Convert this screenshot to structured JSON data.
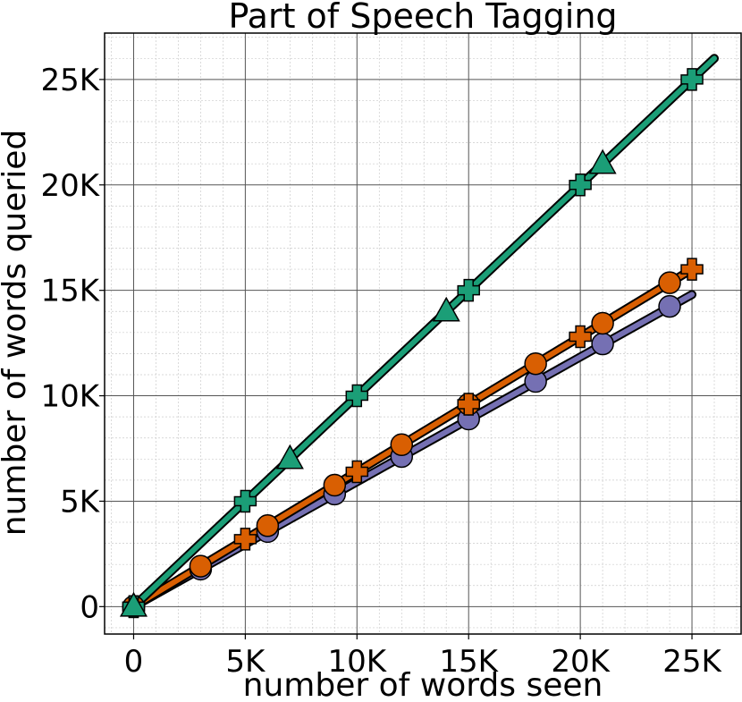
{
  "chart_data": {
    "type": "line",
    "title": "Part of Speech Tagging",
    "xlabel": "number of words seen",
    "ylabel": "number of words queried",
    "xlim": [
      -1300,
      27200
    ],
    "ylim": [
      -1300,
      27200
    ],
    "xticks": [
      0,
      5000,
      10000,
      15000,
      20000,
      25000
    ],
    "xtick_labels": [
      "0",
      "5K",
      "10K",
      "15K",
      "20K",
      "25K"
    ],
    "yticks": [
      0,
      5000,
      10000,
      15000,
      20000,
      25000
    ],
    "ytick_labels": [
      "0",
      "5K",
      "10K",
      "15K",
      "20K",
      "25K"
    ],
    "grid": true,
    "minor_grid": true,
    "legend": false,
    "series": [
      {
        "color": "#1b9e77",
        "line": {
          "x": [
            0,
            26000
          ],
          "y": [
            0,
            26000
          ]
        },
        "markers": [
          {
            "symbol": "plus",
            "points": [
              [
                0,
                0
              ],
              [
                5000,
                5000
              ],
              [
                10000,
                10000
              ],
              [
                15000,
                15000
              ],
              [
                20000,
                20000
              ],
              [
                25000,
                25000
              ]
            ]
          },
          {
            "symbol": "triangle",
            "points": [
              [
                0,
                0
              ],
              [
                7000,
                7000
              ],
              [
                14000,
                14000
              ],
              [
                21000,
                21000
              ]
            ]
          }
        ]
      },
      {
        "color": "#7570b3",
        "line": {
          "x": [
            0,
            25000
          ],
          "y": [
            0,
            14800
          ]
        },
        "markers": [
          {
            "symbol": "circle",
            "points": [
              [
                0,
                0
              ],
              [
                3000,
                1780
              ],
              [
                6000,
                3560
              ],
              [
                9000,
                5340
              ],
              [
                12000,
                7120
              ],
              [
                15000,
                8900
              ],
              [
                18000,
                10680
              ],
              [
                21000,
                12460
              ],
              [
                24000,
                14240
              ]
            ]
          }
        ]
      },
      {
        "color": "#d95f02",
        "line": {
          "x": [
            0,
            25000
          ],
          "y": [
            0,
            16000
          ]
        },
        "markers": [
          {
            "symbol": "circle",
            "points": [
              [
                0,
                0
              ],
              [
                3000,
                1920
              ],
              [
                6000,
                3840
              ],
              [
                9000,
                5760
              ],
              [
                12000,
                7680
              ],
              [
                15000,
                9600
              ],
              [
                18000,
                11520
              ],
              [
                21000,
                13440
              ],
              [
                24000,
                15360
              ]
            ]
          },
          {
            "symbol": "plus",
            "points": [
              [
                0,
                0
              ],
              [
                5000,
                3200
              ],
              [
                10000,
                6400
              ],
              [
                15000,
                9600
              ],
              [
                20000,
                12800
              ],
              [
                25000,
                16000
              ]
            ]
          }
        ]
      }
    ]
  }
}
